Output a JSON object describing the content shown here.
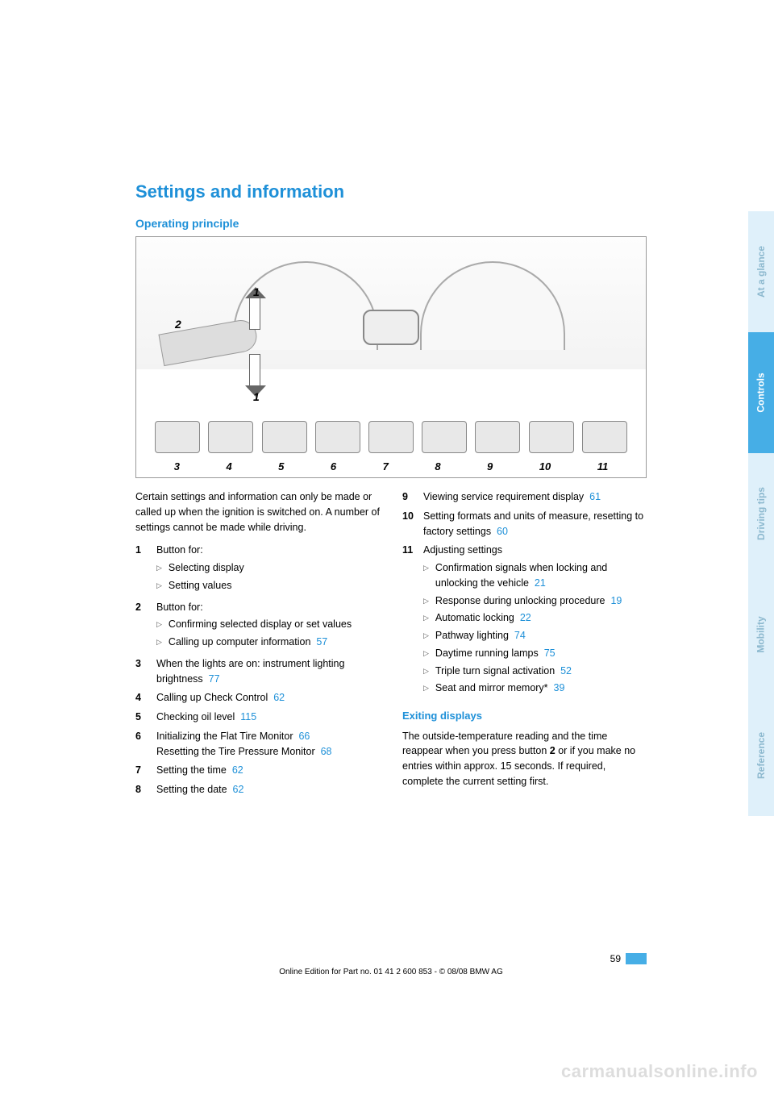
{
  "colors": {
    "accent": "#1e90d8",
    "tab_light_bg": "#dff0fa",
    "tab_light_text": "#8db9cf",
    "tab_active_bg": "#46aee6",
    "tab_active_text": "#ffffff",
    "text": "#000000",
    "watermark": "#dddddd"
  },
  "title": "Settings and information",
  "subtitle": "Operating principle",
  "diagram": {
    "labels": {
      "one_top": "1",
      "one_bottom": "1",
      "two": "2"
    },
    "bottom_numbers": [
      "3",
      "4",
      "5",
      "6",
      "7",
      "8",
      "9",
      "10",
      "11"
    ]
  },
  "left_col": {
    "intro": "Certain settings and information can only be made or called up when the ignition is switched on. A number of settings cannot be made while driving.",
    "items": [
      {
        "n": "1",
        "text": "Button for:",
        "subs": [
          {
            "text": "Selecting display"
          },
          {
            "text": "Setting values"
          }
        ]
      },
      {
        "n": "2",
        "text": "Button for:",
        "subs": [
          {
            "text": "Confirming selected display or set values"
          },
          {
            "text": "Calling up computer information",
            "ref": "57"
          }
        ]
      },
      {
        "n": "3",
        "text": "When the lights are on: instrument lighting brightness",
        "ref": "77"
      },
      {
        "n": "4",
        "text": "Calling up Check Control",
        "ref": "62"
      },
      {
        "n": "5",
        "text": "Checking oil level",
        "ref": "115"
      },
      {
        "n": "6",
        "text": "Initializing the Flat Tire Monitor",
        "ref": "66",
        "extra_text": "Resetting the Tire Pressure Monitor",
        "extra_ref": "68"
      },
      {
        "n": "7",
        "text": "Setting the time",
        "ref": "62"
      },
      {
        "n": "8",
        "text": "Setting the date",
        "ref": "62"
      }
    ]
  },
  "right_col": {
    "items": [
      {
        "n": "9",
        "text": "Viewing service requirement display",
        "ref": "61"
      },
      {
        "n": "10",
        "text": "Setting formats and units of measure, resetting to factory settings",
        "ref": "60"
      },
      {
        "n": "11",
        "text": "Adjusting settings",
        "subs": [
          {
            "text": "Confirmation signals when locking and unlocking the vehicle",
            "ref": "21"
          },
          {
            "text": "Response during unlocking procedure",
            "ref": "19"
          },
          {
            "text": "Automatic locking",
            "ref": "22"
          },
          {
            "text": "Pathway lighting",
            "ref": "74"
          },
          {
            "text": "Daytime running lamps",
            "ref": "75"
          },
          {
            "text": "Triple turn signal activation",
            "ref": "52"
          },
          {
            "text": "Seat and mirror memory*",
            "ref": "39"
          }
        ]
      }
    ],
    "exit_heading": "Exiting displays",
    "exit_p1": "The outside-temperature reading and the time reappear when you press button",
    "exit_bold": "2",
    "exit_p2": "or if you make no entries within approx. 15 seconds. If required, complete the current setting first."
  },
  "tabs": [
    {
      "label": "At a glance",
      "style": "light"
    },
    {
      "label": "Controls",
      "style": "active"
    },
    {
      "label": "Driving tips",
      "style": "light"
    },
    {
      "label": "Mobility",
      "style": "light"
    },
    {
      "label": "Reference",
      "style": "light"
    }
  ],
  "footer": {
    "page_number": "59",
    "line": "Online Edition for Part no. 01 41 2 600 853 - © 08/08 BMW AG"
  },
  "watermark": "carmanualsonline.info"
}
